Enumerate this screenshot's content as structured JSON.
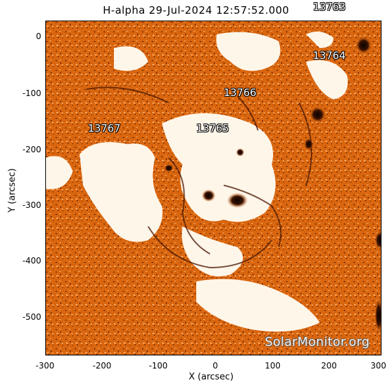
{
  "title": "H-alpha 29-Jul-2024 12:57:52.000",
  "axes": {
    "x_label": "X (arcsec)",
    "y_label": "Y (arcsec)",
    "x_ticks": [
      "-300",
      "-200",
      "-100",
      "0",
      "100",
      "200",
      "300"
    ],
    "y_ticks": [
      "0",
      "-100",
      "-200",
      "-300",
      "-400",
      "-500"
    ]
  },
  "regions": [
    {
      "id": "13763"
    },
    {
      "id": "13764"
    },
    {
      "id": "13766"
    },
    {
      "id": "13767"
    },
    {
      "id": "13765"
    }
  ],
  "watermark": "SolarMonitor.org",
  "colors": {
    "chromosphere_base": "#d9660f",
    "plage": "#fff8ef",
    "filament": "#3a1200",
    "sunspot": "#1a0500"
  }
}
